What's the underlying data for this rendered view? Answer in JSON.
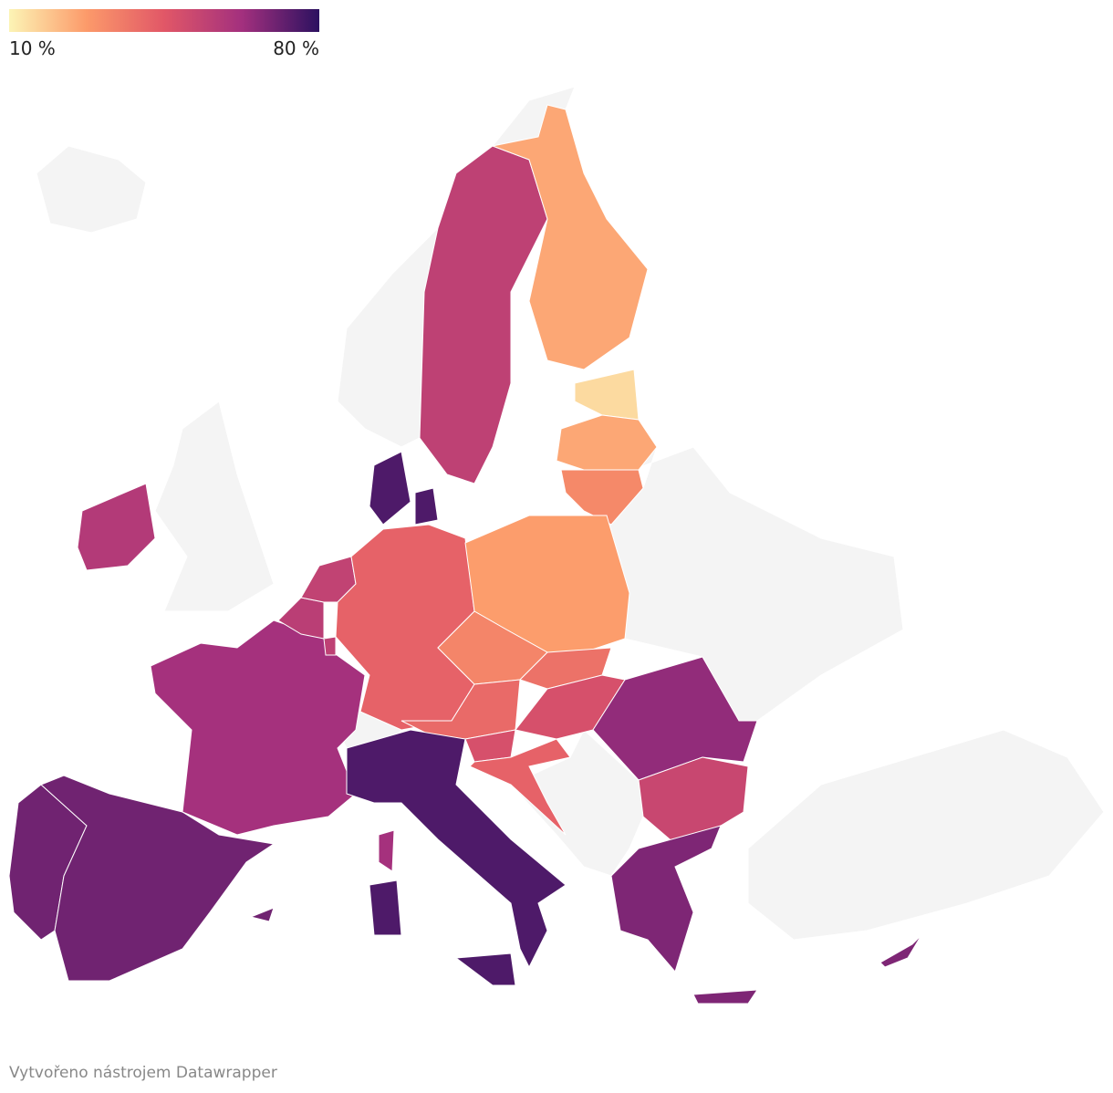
{
  "map": {
    "legend": {
      "min": {
        "value": 10,
        "label": "10 %"
      },
      "max": {
        "value": 80,
        "label": "80 %"
      },
      "colors": [
        "#fcf4b5",
        "#fc9a6a",
        "#e15767",
        "#a3307e",
        "#2c1160"
      ]
    },
    "values": [
      70,
      70,
      62,
      56,
      54,
      55,
      42,
      75,
      55,
      25,
      15,
      25,
      32,
      27,
      33,
      38,
      40,
      48,
      48,
      42,
      65,
      52,
      68,
      75,
      58,
      68
    ]
  },
  "footer": "Vytvořeno nástrojem Datawrapper"
}
